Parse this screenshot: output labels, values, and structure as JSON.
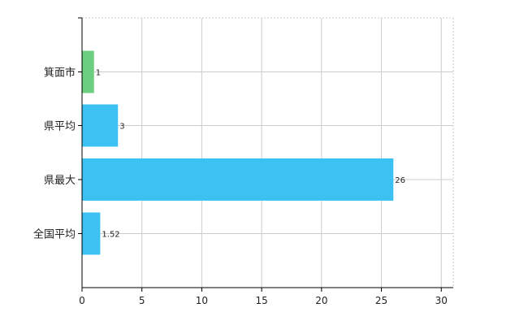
{
  "chart_data": {
    "type": "bar",
    "orientation": "horizontal",
    "categories": [
      "箕面市",
      "県平均",
      "県最大",
      "全国平均"
    ],
    "values": [
      1,
      3,
      26,
      1.52
    ],
    "data_labels": [
      "1",
      "3",
      "26",
      "1.52"
    ],
    "bar_colors": [
      "#6ccf80",
      "#3bc2f2",
      "#3bc2f2",
      "#3bc2f2"
    ],
    "xlim": [
      0,
      30
    ],
    "xticks": [
      0,
      5,
      10,
      15,
      20,
      25,
      30
    ],
    "title": "",
    "xlabel": "",
    "ylabel": "",
    "grid": true,
    "legend": "none"
  },
  "colors": {
    "grid": "#cccccc",
    "axis": "#000000"
  }
}
